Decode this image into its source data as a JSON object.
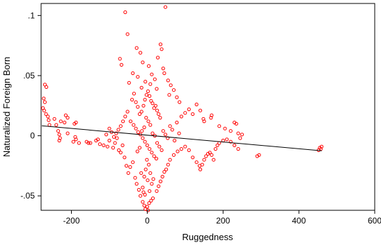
{
  "chart_data": {
    "type": "scatter",
    "xlabel": "Ruggedness",
    "ylabel": "Naturalized Foreign Born",
    "xlim": [
      -280,
      600
    ],
    "ylim": [
      -0.062,
      0.11
    ],
    "xticks": [
      -200,
      0,
      200,
      400,
      600
    ],
    "xtick_labels": [
      "-200",
      "0",
      "200",
      "400",
      "600"
    ],
    "yticks": [
      -0.05,
      0,
      0.05,
      0.1
    ],
    "ytick_labels": [
      "-.05",
      "0",
      ".05",
      ".1"
    ],
    "grid": false,
    "marker_color": "#ff0000",
    "fit_line_color": "#000000",
    "fit_line": {
      "x": [
        -278,
        460
      ],
      "y": [
        0.0083,
        -0.0125
      ]
    },
    "series": [
      {
        "points": [
          [
            -58,
            0.1027
          ],
          [
            48,
            0.107
          ],
          [
            -52,
            0.0845
          ],
          [
            -28,
            0.073
          ],
          [
            -18,
            0.069
          ],
          [
            35,
            0.076
          ],
          [
            38,
            0.072
          ],
          [
            28,
            0.065
          ],
          [
            -72,
            0.064
          ],
          [
            -68,
            0.059
          ],
          [
            -12,
            0.061
          ],
          [
            4,
            0.058
          ],
          [
            42,
            0.056
          ],
          [
            -38,
            0.052
          ],
          [
            -25,
            0.049
          ],
          [
            12,
            0.051
          ],
          [
            20,
            0.047
          ],
          [
            -5,
            0.045
          ],
          [
            8,
            0.043
          ],
          [
            -15,
            0.04
          ],
          [
            25,
            0.039
          ],
          [
            45,
            0.052
          ],
          [
            55,
            0.046
          ],
          [
            -48,
            0.044
          ],
          [
            -270,
            0.0425
          ],
          [
            -266,
            0.0405
          ],
          [
            -273,
            0.031
          ],
          [
            -270,
            0.028
          ],
          [
            -275,
            0.023
          ],
          [
            -272,
            0.021
          ],
          [
            -267,
            0.018
          ],
          [
            -262,
            0.016
          ],
          [
            -260,
            0.013
          ],
          [
            -245,
            0.014
          ],
          [
            -228,
            0.012
          ],
          [
            -218,
            0.011
          ],
          [
            -215,
            0.017
          ],
          [
            -210,
            0.015
          ],
          [
            -192,
            0.01
          ],
          [
            -188,
            0.011
          ],
          [
            -258,
            0.009
          ],
          [
            -240,
            0.009
          ],
          [
            -235,
            0.004
          ],
          [
            -232,
            0.001
          ],
          [
            -230,
            -0.002
          ],
          [
            -232,
            -0.004
          ],
          [
            -210,
            0.002
          ],
          [
            -188,
            -0.003
          ],
          [
            -180,
            -0.006
          ],
          [
            -195,
            -0.005
          ],
          [
            -190,
            -0.001
          ],
          [
            -160,
            -0.005
          ],
          [
            -155,
            -0.006
          ],
          [
            -150,
            -0.006
          ],
          [
            -135,
            -0.004
          ],
          [
            -130,
            -0.003
          ],
          [
            -125,
            -0.007
          ],
          [
            -115,
            -0.008
          ],
          [
            -105,
            -0.009
          ],
          [
            -100,
            -0.004
          ],
          [
            -90,
            -0.01
          ],
          [
            -85,
            -0.006
          ],
          [
            -80,
            -0.002
          ],
          [
            -75,
            -0.012
          ],
          [
            -70,
            -0.014
          ],
          [
            -65,
            -0.008
          ],
          [
            -60,
            -0.018
          ],
          [
            -55,
            -0.025
          ],
          [
            -50,
            -0.031
          ],
          [
            -45,
            -0.026
          ],
          [
            -38,
            -0.022
          ],
          [
            -32,
            -0.035
          ],
          [
            -28,
            -0.04
          ],
          [
            -22,
            -0.045
          ],
          [
            -18,
            -0.05
          ],
          [
            -12,
            -0.055
          ],
          [
            -8,
            -0.058
          ],
          [
            -5,
            -0.061
          ],
          [
            0,
            -0.059
          ],
          [
            5,
            -0.056
          ],
          [
            10,
            -0.054
          ],
          [
            15,
            -0.052
          ],
          [
            2,
            -0.062
          ],
          [
            -10,
            -0.047
          ],
          [
            25,
            -0.046
          ],
          [
            30,
            -0.042
          ],
          [
            35,
            -0.038
          ],
          [
            40,
            -0.034
          ],
          [
            45,
            -0.03
          ],
          [
            50,
            -0.028
          ],
          [
            55,
            -0.024
          ],
          [
            60,
            -0.02
          ],
          [
            70,
            -0.016
          ],
          [
            80,
            -0.013
          ],
          [
            90,
            -0.011
          ],
          [
            100,
            -0.009
          ],
          [
            110,
            -0.012
          ],
          [
            120,
            -0.018
          ],
          [
            130,
            -0.022
          ],
          [
            138,
            -0.025
          ],
          [
            140,
            -0.028
          ],
          [
            145,
            -0.024
          ],
          [
            150,
            -0.02
          ],
          [
            155,
            -0.017
          ],
          [
            160,
            -0.015
          ],
          [
            165,
            -0.014
          ],
          [
            170,
            -0.016
          ],
          [
            175,
            -0.02
          ],
          [
            180,
            -0.011
          ],
          [
            185,
            -0.008
          ],
          [
            190,
            -0.006
          ],
          [
            200,
            -0.004
          ],
          [
            210,
            -0.003
          ],
          [
            220,
            -0.005
          ],
          [
            230,
            -0.008
          ],
          [
            240,
            -0.011
          ],
          [
            245,
            -0.002
          ],
          [
            250,
            0.001
          ],
          [
            240,
            0.002
          ],
          [
            235,
            0.01
          ],
          [
            230,
            0.011
          ],
          [
            220,
            0.004
          ],
          [
            205,
            0.006
          ],
          [
            190,
            0.008
          ],
          [
            170,
            0.017
          ],
          [
            168,
            0.015
          ],
          [
            150,
            0.012
          ],
          [
            148,
            0.014
          ],
          [
            140,
            0.021
          ],
          [
            130,
            0.026
          ],
          [
            120,
            0.018
          ],
          [
            110,
            0.022
          ],
          [
            100,
            0.019
          ],
          [
            90,
            0.016
          ],
          [
            85,
            0.028
          ],
          [
            78,
            0.032
          ],
          [
            70,
            0.038
          ],
          [
            62,
            0.042
          ],
          [
            58,
            0.034
          ],
          [
            295,
            -0.016
          ],
          [
            290,
            -0.017
          ],
          [
            455,
            -0.01
          ],
          [
            458,
            -0.011
          ],
          [
            452,
            -0.012
          ],
          [
            460,
            -0.009
          ],
          [
            -40,
            0.03
          ],
          [
            -35,
            0.035
          ],
          [
            -30,
            0.028
          ],
          [
            -25,
            0.024
          ],
          [
            -20,
            0.018
          ],
          [
            -15,
            0.02
          ],
          [
            -10,
            0.025
          ],
          [
            -6,
            0.03
          ],
          [
            -2,
            0.034
          ],
          [
            2,
            0.037
          ],
          [
            6,
            0.033
          ],
          [
            10,
            0.029
          ],
          [
            14,
            0.027
          ],
          [
            18,
            0.023
          ],
          [
            22,
            0.025
          ],
          [
            26,
            0.021
          ],
          [
            30,
            0.018
          ],
          [
            34,
            0.015
          ],
          [
            -44,
            0.012
          ],
          [
            -36,
            0.009
          ],
          [
            -30,
            0.006
          ],
          [
            -24,
            0.003
          ],
          [
            -18,
            0.001
          ],
          [
            -12,
            -0.002
          ],
          [
            -6,
            -0.005
          ],
          [
            0,
            -0.008
          ],
          [
            6,
            -0.011
          ],
          [
            12,
            -0.014
          ],
          [
            18,
            -0.017
          ],
          [
            24,
            -0.019
          ],
          [
            -3,
            0.015
          ],
          [
            3,
            0.012
          ],
          [
            8,
            0.009
          ],
          [
            -8,
            0.007
          ],
          [
            -14,
            0.004
          ],
          [
            14,
            0.002
          ],
          [
            20,
            0.0
          ],
          [
            -20,
            -0.01
          ],
          [
            -26,
            -0.013
          ],
          [
            26,
            -0.006
          ],
          [
            32,
            -0.009
          ],
          [
            38,
            -0.012
          ],
          [
            -1,
            -0.02
          ],
          [
            4,
            -0.024
          ],
          [
            -4,
            -0.028
          ],
          [
            8,
            -0.031
          ],
          [
            -8,
            -0.034
          ],
          [
            1,
            -0.037
          ],
          [
            12,
            -0.04
          ],
          [
            -12,
            -0.043
          ],
          [
            6,
            -0.046
          ],
          [
            -6,
            -0.049
          ],
          [
            16,
            -0.036
          ],
          [
            -16,
            -0.031
          ],
          [
            42,
            0.004
          ],
          [
            48,
            0.001
          ],
          [
            54,
            -0.002
          ],
          [
            60,
            0.008
          ],
          [
            66,
            0.005
          ],
          [
            72,
            -0.004
          ],
          [
            78,
            0.011
          ],
          [
            84,
            0.002
          ],
          [
            -52,
            0.02
          ],
          [
            -58,
            0.016
          ],
          [
            -64,
            0.012
          ],
          [
            -70,
            0.008
          ],
          [
            -76,
            0.005
          ],
          [
            -82,
            0.002
          ],
          [
            -88,
            -0.001
          ],
          [
            -94,
            0.003
          ],
          [
            -100,
            0.006
          ],
          [
            -108,
            0.001
          ]
        ]
      }
    ]
  }
}
